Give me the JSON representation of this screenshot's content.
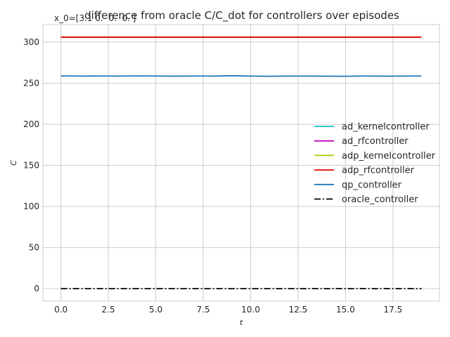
{
  "chart_data": {
    "type": "line",
    "title": "difference from oracle C/C_dot for controllers over episodes",
    "subtitle": "x_0=[3.1 0.  0.  0. ]",
    "xlabel": "t",
    "ylabel": "C",
    "xlim": [
      -0.95,
      19.95
    ],
    "ylim": [
      -15.3,
      321.3
    ],
    "xticks": [
      0.0,
      2.5,
      5.0,
      7.5,
      10.0,
      12.5,
      15.0,
      17.5
    ],
    "xtick_labels": [
      "0.0",
      "2.5",
      "5.0",
      "7.5",
      "10.0",
      "12.5",
      "15.0",
      "17.5"
    ],
    "yticks": [
      0,
      50,
      100,
      150,
      200,
      250,
      300
    ],
    "ytick_labels": [
      "0",
      "50",
      "100",
      "150",
      "200",
      "250",
      "300"
    ],
    "grid": true,
    "legend_position": "center-right",
    "x": [
      0,
      1,
      2,
      3,
      4,
      5,
      6,
      7,
      8,
      9,
      10,
      11,
      12,
      13,
      14,
      15,
      16,
      17,
      18,
      19
    ],
    "series": [
      {
        "name": "ad_kernelcontroller",
        "color": "#17becf",
        "dash": "solid",
        "values": [
          306,
          306,
          306,
          306,
          306,
          306,
          306,
          306,
          306,
          306,
          306,
          306,
          306,
          306,
          306,
          306,
          306,
          306,
          306,
          306
        ]
      },
      {
        "name": "ad_rfcontroller",
        "color": "#c000c0",
        "dash": "solid",
        "values": [
          306,
          306,
          306,
          306,
          306,
          306,
          306,
          306,
          306,
          306,
          306,
          306,
          306,
          306,
          306,
          306,
          306,
          306,
          306,
          306
        ]
      },
      {
        "name": "adp_kernelcontroller",
        "color": "#b5c800",
        "dash": "solid",
        "values": [
          306,
          306,
          306,
          306,
          306,
          306,
          306,
          306,
          306,
          306,
          306,
          306,
          306,
          306,
          306,
          306,
          306,
          306,
          306,
          306
        ]
      },
      {
        "name": "adp_rfcontroller",
        "color": "#e00000",
        "dash": "solid",
        "values": [
          306,
          306,
          306,
          306,
          306,
          306,
          306,
          306,
          306,
          306,
          306,
          306,
          306,
          306,
          306,
          306,
          306,
          306,
          306,
          306
        ]
      },
      {
        "name": "qp_controller",
        "color": "#1f77b4",
        "dash": "solid",
        "values": [
          258.8,
          258.6,
          258.7,
          258.6,
          258.8,
          258.7,
          258.5,
          258.7,
          258.6,
          259.1,
          258.6,
          258.4,
          258.6,
          258.6,
          258.5,
          258.4,
          258.7,
          258.5,
          258.6,
          258.7
        ]
      },
      {
        "name": "oracle_controller",
        "color": "#000000",
        "dash": "dashdot",
        "values": [
          0,
          0,
          0,
          0,
          0,
          0,
          0,
          0,
          0,
          0,
          0,
          0,
          0,
          0,
          0,
          0,
          0,
          0,
          0,
          0
        ]
      }
    ]
  }
}
